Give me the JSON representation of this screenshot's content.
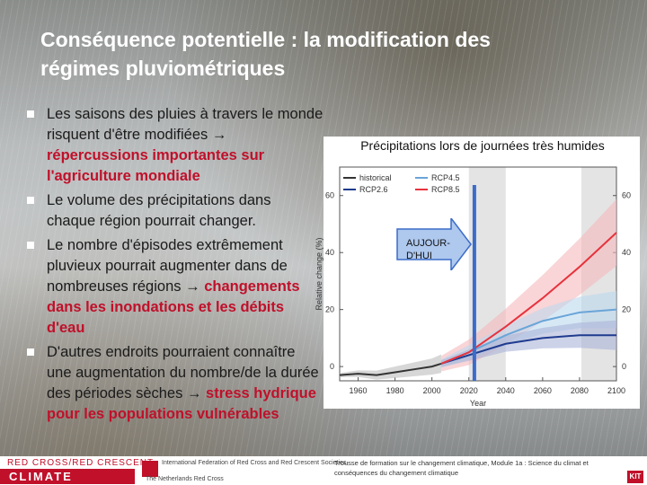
{
  "slide": {
    "title_line1": "Conséquence potentielle : la modification des",
    "title_line2": "régimes pluviométriques"
  },
  "bullets": [
    {
      "text": "Les saisons des pluies à travers le monde risquent d'être modifiées",
      "arrow": "→",
      "highlight": "répercussions importantes sur l'agriculture mondiale"
    },
    {
      "text": "Le volume des précipitations dans chaque région pourrait changer.",
      "arrow": "",
      "highlight": ""
    },
    {
      "text": "Le nombre d'épisodes extrêmement pluvieux pourrait augmenter dans de nombreuses régions",
      "arrow": "→",
      "highlight": "changements dans les inondations et les débits d'eau"
    },
    {
      "text": "D'autres endroits pourraient connaître une augmentation du nombre/de la durée des périodes sèches",
      "arrow": "→",
      "highlight": "stress hydrique pour les populations vulnérables"
    }
  ],
  "callout": {
    "label": "AUJOUR-D'HUI"
  },
  "chart_data": {
    "type": "line",
    "title": "Précipitations lors de journées très humides",
    "xlabel": "Year",
    "ylabel": "Relative change (%)",
    "xlim": [
      1950,
      2100
    ],
    "ylim": [
      -5,
      70
    ],
    "x_ticks": [
      "1960",
      "1980",
      "2000",
      "2020",
      "2040",
      "2060",
      "2080",
      "2100"
    ],
    "y_ticks": [
      "0",
      "20",
      "40",
      "60"
    ],
    "legend": [
      "historical",
      "RCP2.6",
      "RCP4.5",
      "RCP8.5"
    ],
    "series": [
      {
        "name": "historical",
        "color": "#333333",
        "x": [
          1950,
          1960,
          1970,
          1980,
          1990,
          2000,
          2005
        ],
        "y": [
          -3,
          -2.5,
          -3,
          -2,
          -1,
          0,
          1
        ]
      },
      {
        "name": "RCP2.6",
        "color": "#1f3b8f",
        "x": [
          2005,
          2020,
          2040,
          2060,
          2080,
          2100
        ],
        "y": [
          1,
          4,
          8,
          10,
          11,
          11
        ]
      },
      {
        "name": "RCP4.5",
        "color": "#6aa5d8",
        "x": [
          2005,
          2020,
          2040,
          2060,
          2080,
          2100
        ],
        "y": [
          1,
          5,
          11,
          16,
          19,
          20
        ]
      },
      {
        "name": "RCP8.5",
        "color": "#e8323c",
        "x": [
          2005,
          2020,
          2040,
          2060,
          2080,
          2100
        ],
        "y": [
          1,
          5,
          14,
          24,
          35,
          47
        ]
      }
    ]
  },
  "footer": {
    "cc_top": "RED CROSS/RED CRESCENT",
    "cc_main": "CLIMATE CENTRE",
    "ifrc": "International Federation of Red Cross and Red Crescent Societies",
    "rc": "The Netherlands Red Cross",
    "note": "Trousse de formation sur le changement climatique, Module 1a : Science du climat et conséquences du changement climatique",
    "kit": "KIT"
  },
  "colors": {
    "accent": "#c0102a",
    "today_marker": "#3b6cc9"
  }
}
